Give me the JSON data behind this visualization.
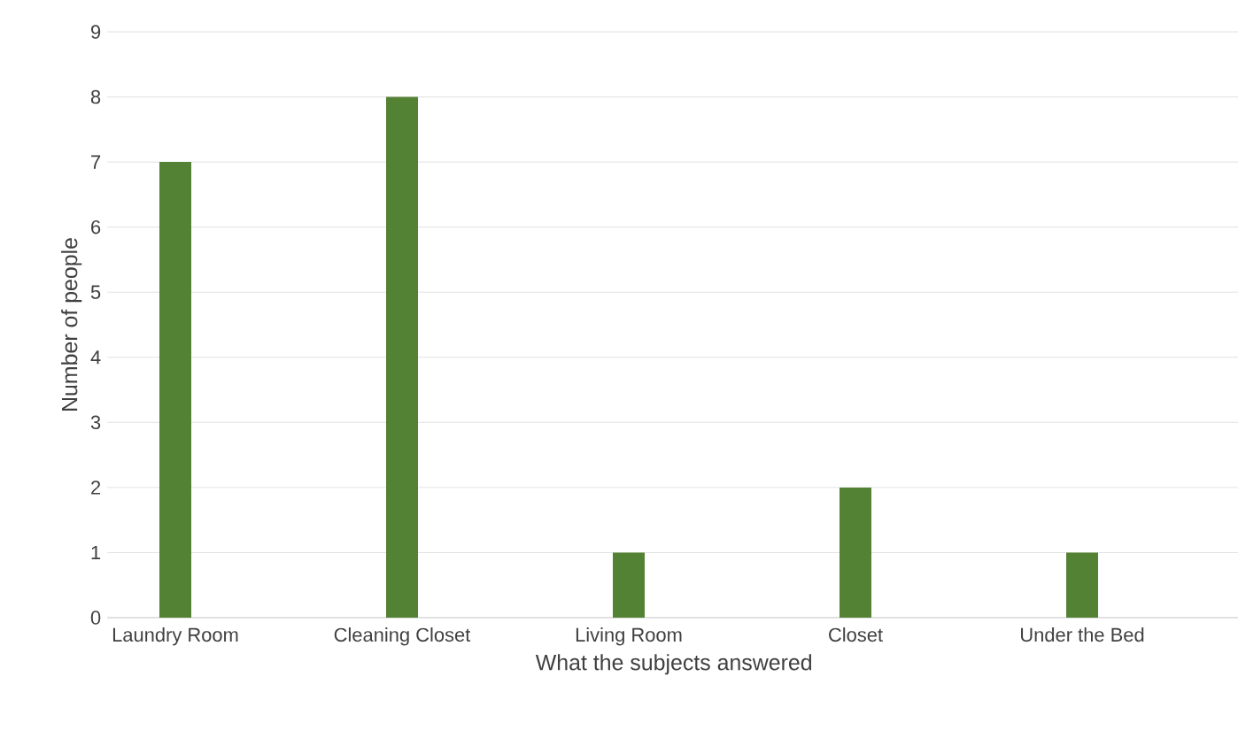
{
  "chart_data": {
    "type": "bar",
    "xlabel": "What the subjects answered",
    "ylabel": "Number of people",
    "categories": [
      "Laundry Room",
      "Cleaning Closet",
      "Living Room",
      "Closet",
      "Under the Bed"
    ],
    "values": [
      7,
      8,
      1,
      2,
      1
    ],
    "color": "#548235",
    "ylim": [
      0,
      9
    ],
    "yticks": [
      0,
      1,
      2,
      3,
      4,
      5,
      6,
      7,
      8,
      9
    ],
    "grid": "y"
  }
}
